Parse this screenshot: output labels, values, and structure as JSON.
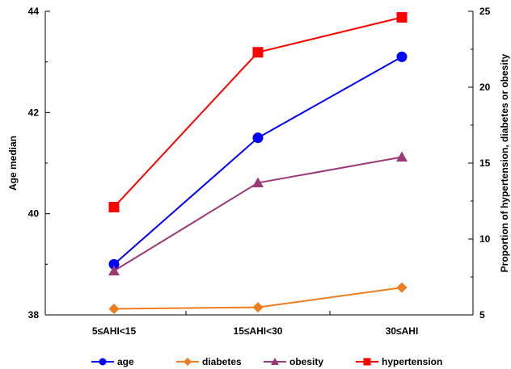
{
  "chart_data": {
    "type": "line",
    "categories": [
      "5≤AHI<15",
      "15≤AHI<30",
      "30≤AHI"
    ],
    "y_left": {
      "label": "Age median",
      "range": [
        38,
        44
      ],
      "ticks": [
        "38",
        "40",
        "42",
        "44"
      ]
    },
    "y_right": {
      "label": "Proportion of hypertension, diabetes or obesity",
      "range": [
        5,
        25
      ],
      "ticks": [
        "5",
        "10",
        "15",
        "20",
        "25"
      ]
    },
    "series": [
      {
        "name": "age",
        "axis": "left",
        "values": [
          39.0,
          41.5,
          43.1
        ],
        "color": "#0000ff",
        "marker": "circle"
      },
      {
        "name": "diabetes",
        "axis": "right",
        "values": [
          5.4,
          5.5,
          6.8
        ],
        "color": "#f07c1e",
        "marker": "diamond"
      },
      {
        "name": "obesity",
        "axis": "right",
        "values": [
          7.9,
          13.7,
          15.4
        ],
        "color": "#9b3a74",
        "marker": "triangle"
      },
      {
        "name": "hypertension",
        "axis": "right",
        "values": [
          12.1,
          22.3,
          24.6
        ],
        "color": "#ff0000",
        "marker": "square"
      }
    ],
    "grid": false,
    "legend": "bottom"
  }
}
